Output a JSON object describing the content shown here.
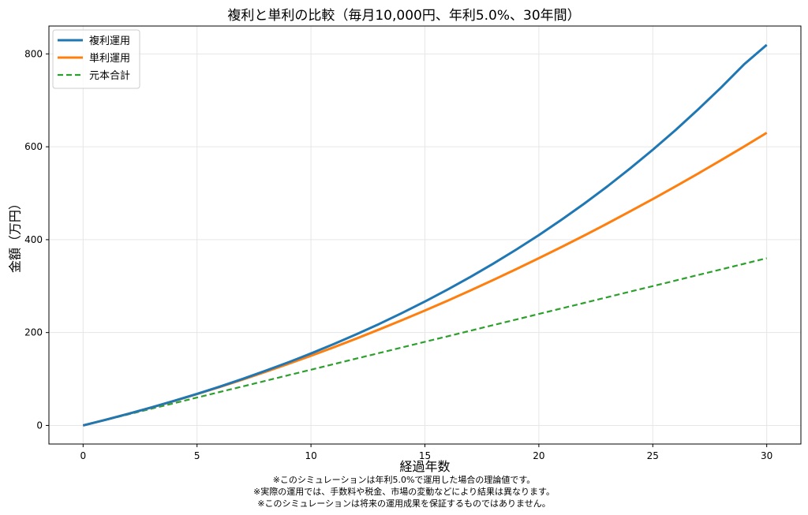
{
  "chart_data": {
    "type": "line",
    "title": "複利と単利の比較（毎月10,000円、年利5.0%、30年間）",
    "xlabel": "経過年数",
    "ylabel": "金額（万円）",
    "xlim": [
      -1.5,
      31.5
    ],
    "ylim": [
      -40,
      860
    ],
    "xticks": [
      0,
      5,
      10,
      15,
      20,
      25,
      30
    ],
    "yticks": [
      0,
      200,
      400,
      600,
      800
    ],
    "grid": true,
    "legend_position": "top-left",
    "x": [
      0,
      1,
      2,
      3,
      4,
      5,
      6,
      7,
      8,
      9,
      10,
      11,
      12,
      13,
      14,
      15,
      16,
      17,
      18,
      19,
      20,
      21,
      22,
      23,
      24,
      25,
      26,
      27,
      28,
      29,
      30
    ],
    "series": [
      {
        "name": "複利運用",
        "color": "#1f77b4",
        "style": "solid",
        "values": [
          0,
          12.3,
          25.2,
          38.8,
          53.0,
          68.0,
          83.7,
          100.2,
          117.6,
          135.8,
          155.0,
          175.2,
          196.5,
          218.7,
          242.2,
          266.9,
          292.7,
          319.9,
          348.4,
          378.4,
          409.9,
          443.1,
          477.9,
          514.5,
          553.1,
          593.5,
          636.1,
          680.8,
          727.7,
          777.1,
          819.5
        ]
      },
      {
        "name": "単利運用",
        "color": "#ff7f0e",
        "style": "solid",
        "values": [
          0,
          12.3,
          25.2,
          38.7,
          52.8,
          67.5,
          82.8,
          98.7,
          115.2,
          132.3,
          150.0,
          168.3,
          187.2,
          206.7,
          226.8,
          247.5,
          268.8,
          290.7,
          313.2,
          336.3,
          360.0,
          384.3,
          409.2,
          434.7,
          460.8,
          487.5,
          514.8,
          542.7,
          571.2,
          600.3,
          630.0
        ]
      },
      {
        "name": "元本合計",
        "color": "#2ca02c",
        "style": "dashed",
        "values": [
          0,
          12,
          24,
          36,
          48,
          60,
          72,
          84,
          96,
          108,
          120,
          132,
          144,
          156,
          168,
          180,
          192,
          204,
          216,
          228,
          240,
          252,
          264,
          276,
          288,
          300,
          312,
          324,
          336,
          348,
          360
        ]
      }
    ]
  },
  "notes": [
    "※このシミュレーションは年利5.0%で運用した場合の理論値です。",
    "※実際の運用では、手数料や税金、市場の変動などにより結果は異なります。",
    "※このシミュレーションは将来の運用成果を保証するものではありません。"
  ]
}
